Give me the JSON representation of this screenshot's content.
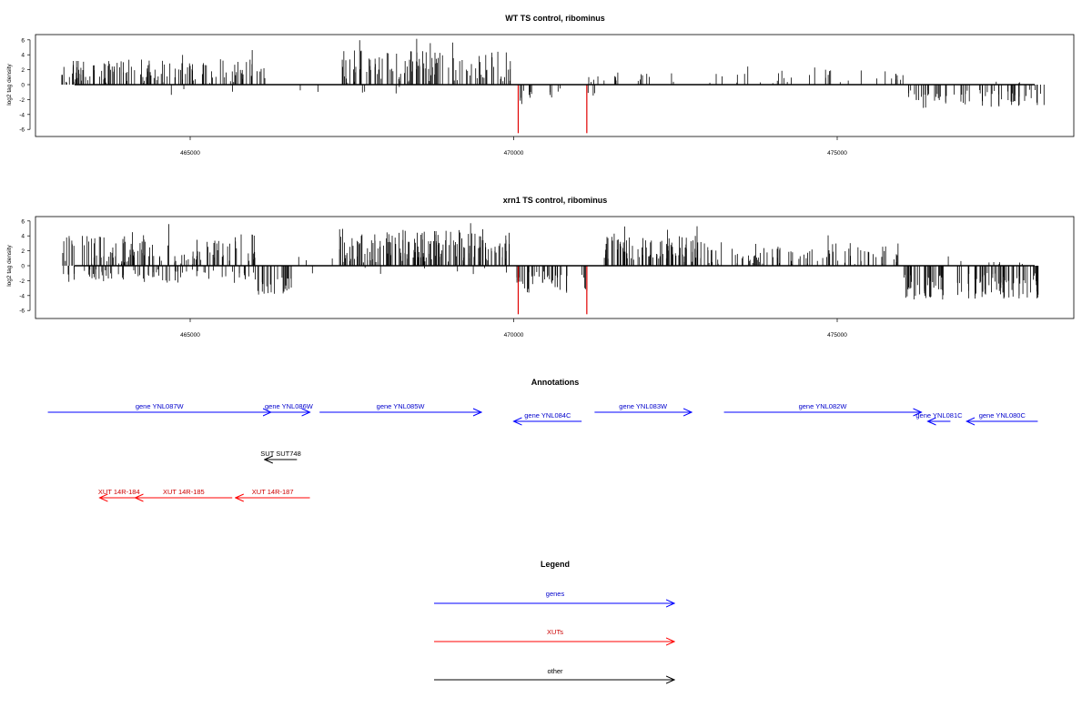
{
  "chart_data": [
    {
      "type": "bar",
      "title": "WT TS control, ribominus",
      "ylabel": "log2 tag density",
      "xlabel": "",
      "xlim": [
        462800,
        478300
      ],
      "ylim": [
        -6.8,
        6.8
      ],
      "x_ticks": [
        465000,
        470000,
        475000
      ],
      "x_tick_labels": [
        "465000",
        "470000",
        "475000"
      ],
      "y_ticks": [
        -6,
        -4,
        -2,
        0,
        2,
        4,
        6
      ],
      "y_tick_labels": [
        "-6",
        "-4",
        "-2",
        "0",
        "2",
        "4",
        "6"
      ],
      "grid": false,
      "series_colors": {
        "default": "#000000",
        "highlight": "#e00000"
      },
      "highlight_points": [
        {
          "x": 470070,
          "y": -6.5
        },
        {
          "x": 471130,
          "y": -6.5
        }
      ],
      "segments": [
        {
          "x_start": 463000,
          "x_end": 466150,
          "density": 4.4,
          "mean": 1.8,
          "amp": 1.6,
          "neg_frac": 0.06,
          "neg_mean": 1.0
        },
        {
          "x_start": 466150,
          "x_end": 467250,
          "density": 0.25,
          "mean": 0.9,
          "amp": 0.6,
          "neg_frac": 0.25,
          "neg_mean": 0.8
        },
        {
          "x_start": 467350,
          "x_end": 469950,
          "density": 4.6,
          "mean": 2.4,
          "amp": 2.2,
          "neg_frac": 0.03,
          "neg_mean": 0.8
        },
        {
          "x_start": 470050,
          "x_end": 470300,
          "density": 3.0,
          "mean": 0,
          "amp": 0,
          "neg_frac": 1.0,
          "neg_mean": 1.6
        },
        {
          "x_start": 470550,
          "x_end": 470750,
          "density": 2.5,
          "mean": 0,
          "amp": 0,
          "neg_frac": 1.0,
          "neg_mean": 1.3
        },
        {
          "x_start": 471150,
          "x_end": 471300,
          "density": 2.0,
          "mean": 0,
          "amp": 0,
          "neg_frac": 1.0,
          "neg_mean": 1.6
        },
        {
          "x_start": 471150,
          "x_end": 472350,
          "density": 1.3,
          "mean": 1.0,
          "amp": 0.7,
          "neg_frac": 0.0,
          "neg_mean": 0
        },
        {
          "x_start": 472350,
          "x_end": 476000,
          "density": 0.8,
          "mean": 1.1,
          "amp": 1.0,
          "neg_frac": 0.0,
          "neg_mean": 0
        },
        {
          "x_start": 475750,
          "x_end": 476050,
          "density": 3.0,
          "mean": 1.2,
          "amp": 0.6,
          "neg_frac": 0.0,
          "neg_mean": 0
        },
        {
          "x_start": 476100,
          "x_end": 476700,
          "density": 4.0,
          "mean": 0,
          "amp": 0,
          "neg_frac": 1.0,
          "neg_mean": 1.9
        },
        {
          "x_start": 476800,
          "x_end": 478200,
          "density": 3.2,
          "mean": 0,
          "amp": 0,
          "neg_frac": 0.92,
          "neg_mean": 1.8
        }
      ]
    },
    {
      "type": "bar",
      "title": "xrn1 TS control, ribominus",
      "ylabel": "log2 tag density",
      "xlabel": "",
      "xlim": [
        462800,
        478300
      ],
      "ylim": [
        -6.8,
        6.8
      ],
      "x_ticks": [
        465000,
        470000,
        475000
      ],
      "x_tick_labels": [
        "465000",
        "470000",
        "475000"
      ],
      "y_ticks": [
        -6,
        -4,
        -2,
        0,
        2,
        4,
        6
      ],
      "y_tick_labels": [
        "-6",
        "-4",
        "-2",
        "0",
        "2",
        "4",
        "6"
      ],
      "grid": false,
      "series_colors": {
        "default": "#000000",
        "highlight": "#e00000"
      },
      "highlight_points": [
        {
          "x": 470070,
          "y": -6.5
        },
        {
          "x": 471130,
          "y": -6.5
        }
      ],
      "segments": [
        {
          "x_start": 463000,
          "x_end": 466000,
          "density": 6.5,
          "mean": 2.2,
          "amp": 2.0,
          "neg_frac": 0.35,
          "neg_mean": 1.4
        },
        {
          "x_start": 466000,
          "x_end": 466600,
          "density": 4.0,
          "mean": 0,
          "amp": 0,
          "neg_frac": 1.0,
          "neg_mean": 2.4
        },
        {
          "x_start": 466600,
          "x_end": 467200,
          "density": 0.6,
          "mean": 1.5,
          "amp": 1.0,
          "neg_frac": 0.3,
          "neg_mean": 0.8
        },
        {
          "x_start": 467300,
          "x_end": 469950,
          "density": 6.5,
          "mean": 2.6,
          "amp": 2.2,
          "neg_frac": 0.04,
          "neg_mean": 0.8
        },
        {
          "x_start": 470050,
          "x_end": 470850,
          "density": 5.0,
          "mean": 0,
          "amp": 0,
          "neg_frac": 1.0,
          "neg_mean": 2.2
        },
        {
          "x_start": 471000,
          "x_end": 471150,
          "density": 3.0,
          "mean": 0,
          "amp": 0,
          "neg_frac": 1.0,
          "neg_mean": 2.2
        },
        {
          "x_start": 471400,
          "x_end": 472900,
          "density": 6.0,
          "mean": 2.2,
          "amp": 1.8,
          "neg_frac": 0.0,
          "neg_mean": 0
        },
        {
          "x_start": 472900,
          "x_end": 475950,
          "density": 3.0,
          "mean": 1.6,
          "amp": 1.4,
          "neg_frac": 0.0,
          "neg_mean": 0
        },
        {
          "x_start": 476000,
          "x_end": 476650,
          "density": 6.0,
          "mean": 0,
          "amp": 0,
          "neg_frac": 1.0,
          "neg_mean": 2.8
        },
        {
          "x_start": 476650,
          "x_end": 476850,
          "density": 0.6,
          "mean": 0.8,
          "amp": 0.5,
          "neg_frac": 0.0,
          "neg_mean": 0
        },
        {
          "x_start": 476850,
          "x_end": 478200,
          "density": 6.0,
          "mean": 0,
          "amp": 0,
          "neg_frac": 0.97,
          "neg_mean": 2.7
        }
      ]
    }
  ],
  "annotations": {
    "title": "Annotations",
    "items": [
      {
        "label": "gene YNL087W",
        "category": "gene",
        "x_start": 462800,
        "x_end": 466250,
        "strand": "+",
        "row": 0
      },
      {
        "label": "gene YNL086W",
        "category": "gene",
        "x_start": 466200,
        "x_end": 466850,
        "strand": "+",
        "row": 0
      },
      {
        "label": "gene YNL085W",
        "category": "gene",
        "x_start": 467000,
        "x_end": 469500,
        "strand": "+",
        "row": 0
      },
      {
        "label": "gene YNL084C",
        "category": "gene",
        "x_start": 470000,
        "x_end": 471050,
        "strand": "-",
        "row": 1
      },
      {
        "label": "gene YNL083W",
        "category": "gene",
        "x_start": 471250,
        "x_end": 472750,
        "strand": "+",
        "row": 0
      },
      {
        "label": "gene YNL082W",
        "category": "gene",
        "x_start": 473250,
        "x_end": 476300,
        "strand": "+",
        "row": 0
      },
      {
        "label": "gene YNL081C",
        "category": "gene",
        "x_start": 476400,
        "x_end": 476750,
        "strand": "-",
        "row": 1
      },
      {
        "label": "gene YNL080C",
        "category": "gene",
        "x_start": 477000,
        "x_end": 478100,
        "strand": "-",
        "row": 1
      },
      {
        "label": "SUT SUT748",
        "category": "other",
        "x_start": 466150,
        "x_end": 466650,
        "strand": "-",
        "row": 2
      },
      {
        "label": "XUT 14R-184",
        "category": "xut",
        "x_start": 463600,
        "x_end": 464200,
        "strand": "-",
        "row": 3
      },
      {
        "label": "XUT 14R-185",
        "category": "xut",
        "x_start": 464150,
        "x_end": 465650,
        "strand": "-",
        "row": 3
      },
      {
        "label": "XUT 14R-187",
        "category": "xut",
        "x_start": 465700,
        "x_end": 466850,
        "strand": "-",
        "row": 3
      }
    ]
  },
  "legend": {
    "title": "Legend",
    "entries": [
      {
        "label": "genes",
        "color": "#0000ff"
      },
      {
        "label": "XUTs",
        "color": "#ff0000"
      },
      {
        "label": "other",
        "color": "#000000"
      }
    ]
  },
  "colors": {
    "gene": "#0000ff",
    "xut": "#ff0000",
    "other": "#000000",
    "gene_text": "#0000cc",
    "xut_text": "#cc0000"
  }
}
